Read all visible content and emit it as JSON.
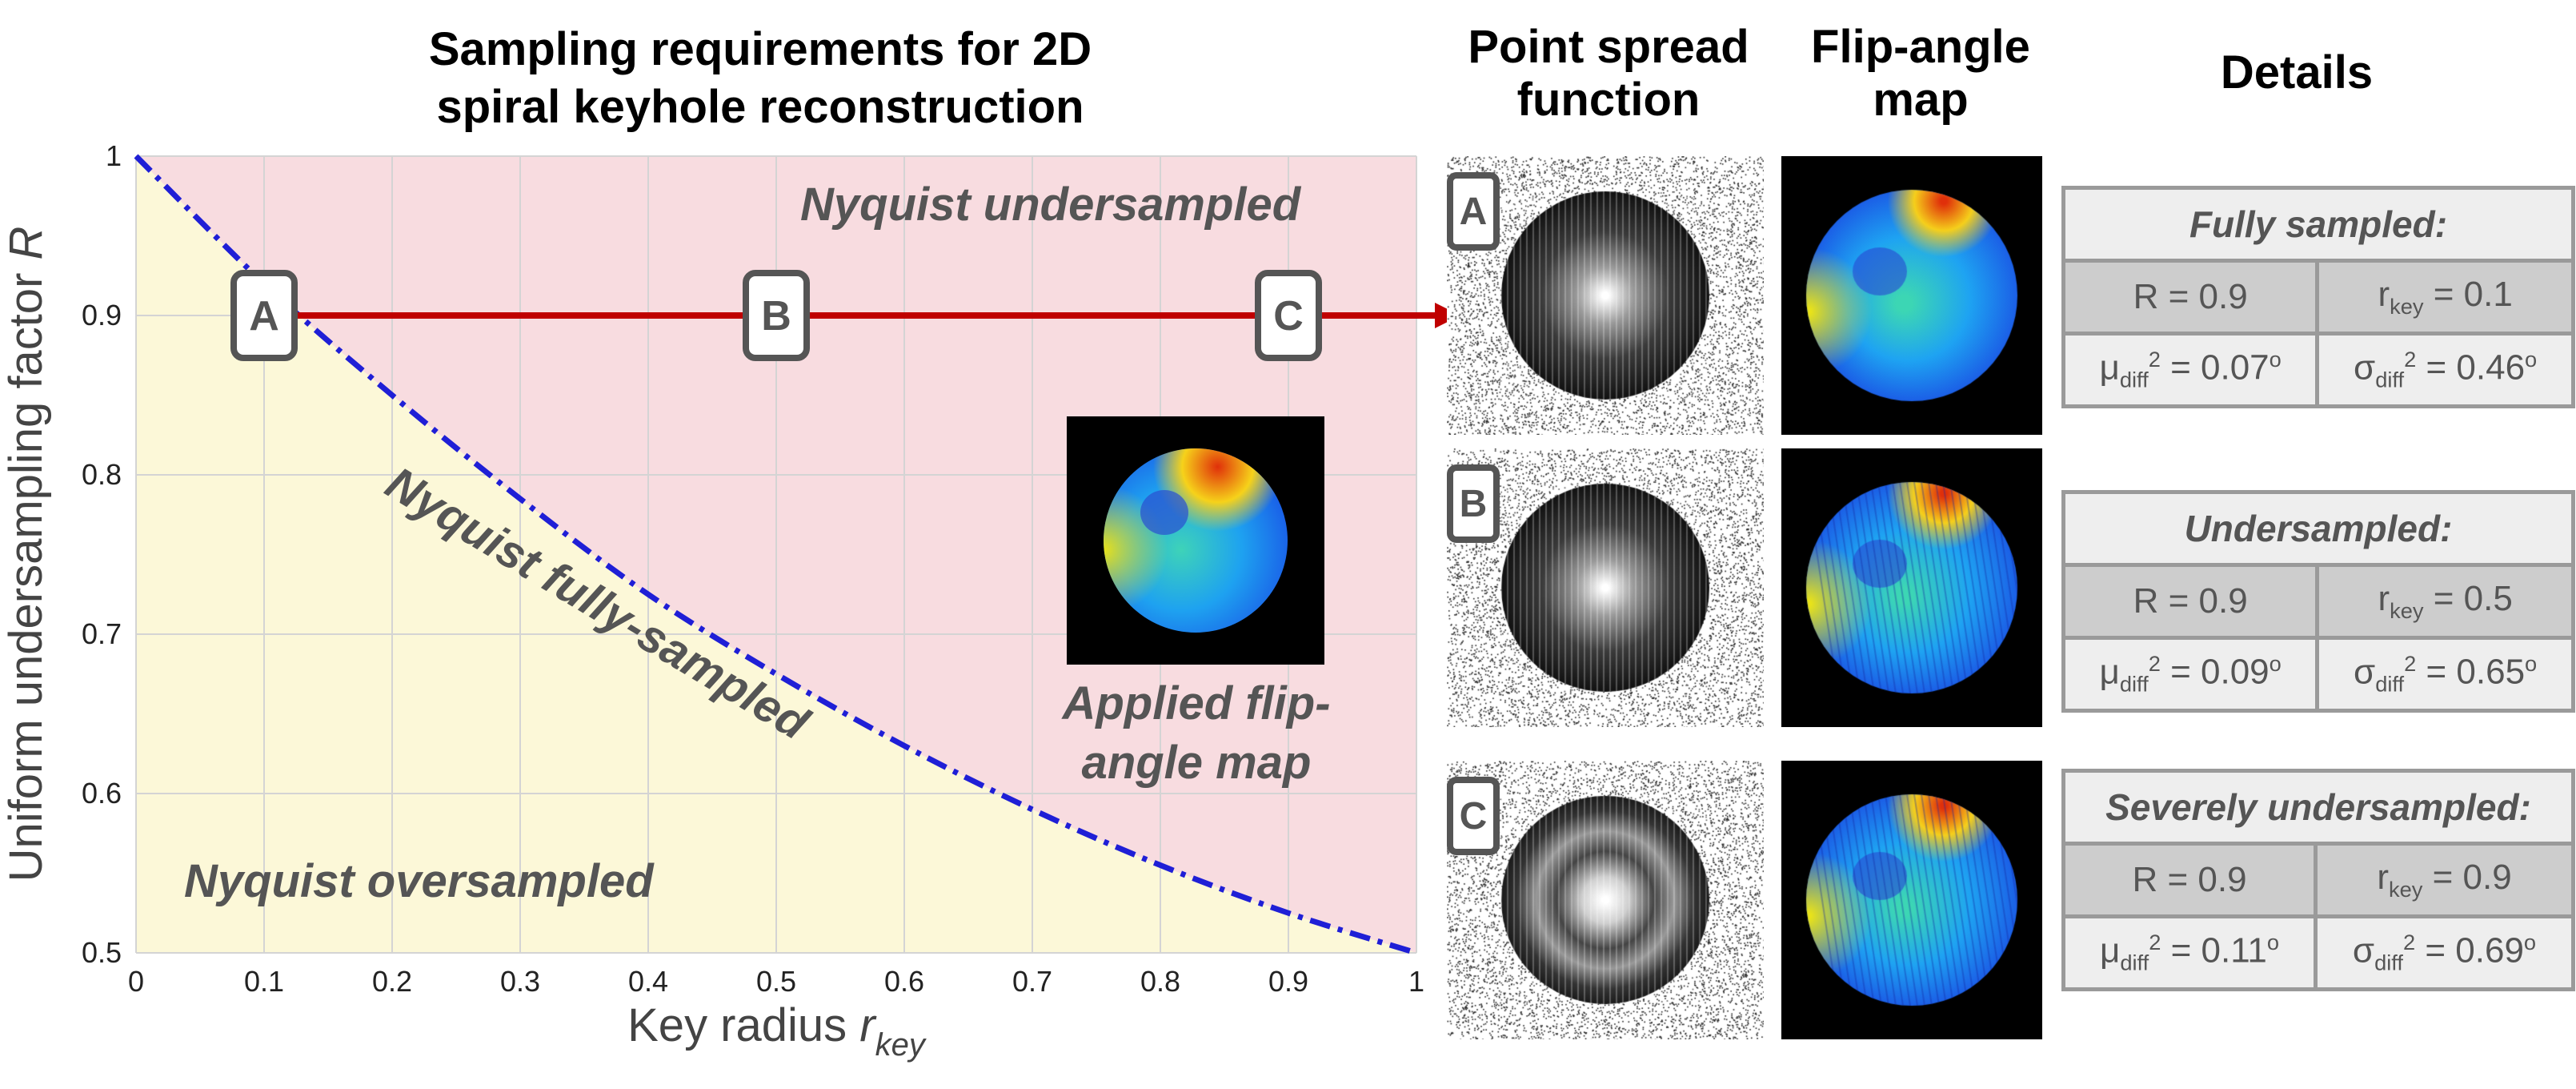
{
  "left_title": [
    "Sampling requirements for 2D",
    "spiral keyhole reconstruction"
  ],
  "psf_title": [
    "Point spread",
    "function"
  ],
  "fam_title": [
    "Flip-angle",
    "map"
  ],
  "details_title": "Details",
  "chart_data": {
    "type": "line",
    "xlabel_main": "Key radius ",
    "xlabel_var": "r",
    "xlabel_sub": "key",
    "ylabel_main": "Uniform undersampling factor ",
    "ylabel_var": "R",
    "xlim": [
      0,
      1
    ],
    "ylim": [
      0.5,
      1
    ],
    "x_ticks": [
      "0",
      "0.1",
      "0.2",
      "0.3",
      "0.4",
      "0.5",
      "0.6",
      "0.7",
      "0.8",
      "0.9",
      "1"
    ],
    "y_ticks": [
      "0.5",
      "0.6",
      "0.7",
      "0.8",
      "0.9",
      "1"
    ],
    "grid": true,
    "series": [
      {
        "label": "Nyquist fully-sampled",
        "color": "#1f1fd6",
        "style": "dash-dot",
        "x": [
          0,
          0.1,
          0.2,
          0.3,
          0.4,
          0.5,
          0.6,
          0.7,
          0.8,
          0.9,
          1
        ],
        "y": [
          1,
          0.92,
          0.85,
          0.785,
          0.725,
          0.675,
          0.63,
          0.59,
          0.555,
          0.525,
          0.5
        ]
      }
    ],
    "regions": [
      {
        "label": "Nyquist undersampled",
        "color": "#f8dce0"
      },
      {
        "label": "Nyquist oversampled",
        "color": "#fcf8d8"
      }
    ],
    "arrow": {
      "y": 0.9,
      "x_start": 0.1,
      "color": "#c00000"
    },
    "points": [
      {
        "label": "A",
        "x": 0.1,
        "y": 0.9
      },
      {
        "label": "B",
        "x": 0.5,
        "y": 0.9
      },
      {
        "label": "C",
        "x": 0.9,
        "y": 0.9
      }
    ],
    "inset_label": [
      "Applied flip-",
      "angle map"
    ]
  },
  "rows": [
    {
      "badge": "A",
      "header": "Fully sampled:",
      "R_text": "R = 0.9",
      "rkey_pre": "r",
      "rkey_sub": "key",
      "rkey_val": " = 0.1",
      "mu_pre": "μ",
      "mu_sub": "diff",
      "mu_sup": "2",
      "mu_val": " = 0.07",
      "mu_unit": "o",
      "sigma_pre": "σ",
      "sigma_sub": "diff",
      "sigma_sup": "2",
      "sigma_val": " = 0.46",
      "sigma_unit": "o"
    },
    {
      "badge": "B",
      "header": "Undersampled:",
      "R_text": "R = 0.9",
      "rkey_pre": "r",
      "rkey_sub": "key",
      "rkey_val": " = 0.5",
      "mu_pre": "μ",
      "mu_sub": "diff",
      "mu_sup": "2",
      "mu_val": " = 0.09",
      "mu_unit": "o",
      "sigma_pre": "σ",
      "sigma_sub": "diff",
      "sigma_sup": "2",
      "sigma_val": " = 0.65",
      "sigma_unit": "o"
    },
    {
      "badge": "C",
      "header": "Severely undersampled:",
      "R_text": "R = 0.9",
      "rkey_pre": "r",
      "rkey_sub": "key",
      "rkey_val": " = 0.9",
      "mu_pre": "μ",
      "mu_sub": "diff",
      "mu_sup": "2",
      "mu_val": " = 0.11",
      "mu_unit": "o",
      "sigma_pre": "σ",
      "sigma_sub": "diff",
      "sigma_sup": "2",
      "sigma_val": " = 0.69",
      "sigma_unit": "o"
    }
  ],
  "colors": {
    "undersampled_region": "#f8dce0",
    "oversampled_region": "#fcf8d8",
    "curve": "#1f1fd6",
    "arrow": "#c00000",
    "badge_border": "#555555",
    "annotation_text": "#555555"
  }
}
